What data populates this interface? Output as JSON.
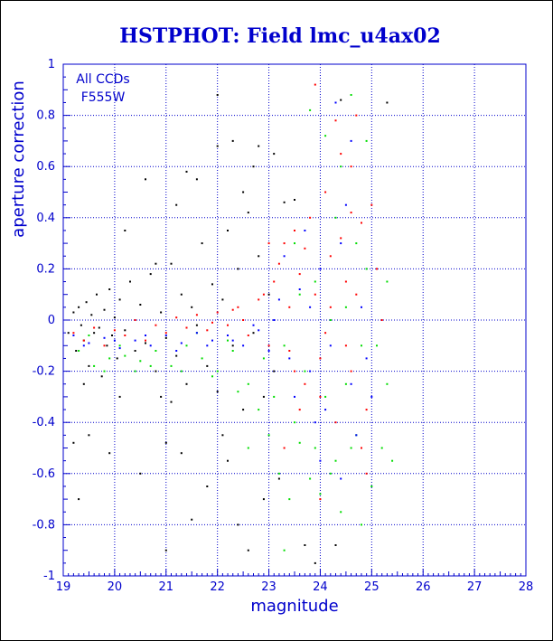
{
  "chart_data": {
    "type": "scatter",
    "title": "HSTPHOT: Field lmc_u4ax02",
    "xlabel": "magnitude",
    "ylabel": "aperture correction",
    "xlim": [
      19,
      28
    ],
    "ylim": [
      -1,
      1
    ],
    "x_ticks": [
      "19",
      "20",
      "21",
      "22",
      "23",
      "24",
      "25",
      "26",
      "27",
      "28"
    ],
    "y_ticks": [
      "1",
      "0.8",
      "0.6",
      "0.4",
      "0.2",
      "0",
      "-0.2",
      "-0.4",
      "-0.6",
      "-0.8",
      "-1"
    ],
    "grid": true,
    "annotations": [
      "All CCDs",
      "F555W"
    ],
    "series_colors": [
      "#000000",
      "#ff0000",
      "#00dd00",
      "#0000ff"
    ],
    "series": [
      {
        "color_index": 0,
        "points": [
          [
            19.1,
            -0.05
          ],
          [
            19.2,
            0.03
          ],
          [
            19.25,
            -0.12
          ],
          [
            19.3,
            0.05
          ],
          [
            19.35,
            -0.02
          ],
          [
            19.4,
            -0.08
          ],
          [
            19.45,
            0.07
          ],
          [
            19.5,
            -0.18
          ],
          [
            19.55,
            0.02
          ],
          [
            19.6,
            -0.05
          ],
          [
            19.65,
            0.1
          ],
          [
            19.7,
            -0.03
          ],
          [
            19.75,
            -0.22
          ],
          [
            19.8,
            0.04
          ],
          [
            19.85,
            -0.1
          ],
          [
            19.9,
            0.12
          ],
          [
            19.95,
            -0.06
          ],
          [
            20.0,
            0.01
          ],
          [
            20.05,
            -0.15
          ],
          [
            20.1,
            0.08
          ],
          [
            20.2,
            -0.04
          ],
          [
            20.3,
            0.15
          ],
          [
            20.4,
            -0.12
          ],
          [
            20.5,
            0.06
          ],
          [
            20.6,
            -0.09
          ],
          [
            20.7,
            0.18
          ],
          [
            20.8,
            -0.2
          ],
          [
            20.9,
            0.03
          ],
          [
            21.0,
            -0.07
          ],
          [
            21.1,
            0.22
          ],
          [
            21.2,
            -0.14
          ],
          [
            21.3,
            0.1
          ],
          [
            21.4,
            -0.25
          ],
          [
            21.5,
            0.05
          ],
          [
            21.6,
            -0.02
          ],
          [
            21.7,
            0.3
          ],
          [
            21.8,
            -0.18
          ],
          [
            21.9,
            0.14
          ],
          [
            22.0,
            -0.28
          ],
          [
            22.1,
            0.08
          ],
          [
            22.2,
            0.35
          ],
          [
            22.3,
            -0.1
          ],
          [
            22.4,
            0.2
          ],
          [
            22.5,
            -0.35
          ],
          [
            22.6,
            0.42
          ],
          [
            22.7,
            -0.05
          ],
          [
            22.8,
            0.25
          ],
          [
            22.9,
            -0.3
          ],
          [
            23.0,
            0.1
          ],
          [
            23.1,
            -0.2
          ],
          [
            19.3,
            -0.7
          ],
          [
            19.5,
            -0.45
          ],
          [
            19.9,
            -0.52
          ],
          [
            20.2,
            0.35
          ],
          [
            20.5,
            -0.6
          ],
          [
            20.9,
            -0.3
          ],
          [
            21.0,
            -0.9
          ],
          [
            21.2,
            0.45
          ],
          [
            21.3,
            -0.52
          ],
          [
            21.4,
            0.58
          ],
          [
            21.6,
            0.55
          ],
          [
            21.8,
            -0.65
          ],
          [
            22.0,
            0.88
          ],
          [
            22.0,
            0.68
          ],
          [
            22.1,
            -0.45
          ],
          [
            22.3,
            0.7
          ],
          [
            22.4,
            -0.8
          ],
          [
            22.6,
            -0.9
          ],
          [
            22.7,
            0.6
          ],
          [
            22.8,
            0.68
          ],
          [
            22.9,
            -0.7
          ],
          [
            23.1,
            0.65
          ],
          [
            23.3,
            0.46
          ],
          [
            23.5,
            0.47
          ],
          [
            23.7,
            -0.88
          ],
          [
            23.9,
            -0.95
          ],
          [
            24.3,
            -0.88
          ],
          [
            19.2,
            -0.48
          ],
          [
            20.6,
            0.55
          ],
          [
            21.0,
            -0.48
          ],
          [
            22.2,
            -0.55
          ],
          [
            23.2,
            -0.62
          ],
          [
            24.4,
            0.86
          ],
          [
            25.3,
            0.85
          ],
          [
            21.1,
            -0.32
          ],
          [
            20.1,
            -0.3
          ],
          [
            19.4,
            -0.25
          ],
          [
            22.5,
            0.5
          ],
          [
            21.5,
            -0.78
          ],
          [
            20.8,
            0.22
          ]
        ]
      },
      {
        "color_index": 1,
        "points": [
          [
            19.2,
            -0.05
          ],
          [
            19.4,
            -0.08
          ],
          [
            19.6,
            -0.03
          ],
          [
            19.8,
            -0.1
          ],
          [
            20.0,
            -0.04
          ],
          [
            20.2,
            -0.06
          ],
          [
            20.4,
            0.0
          ],
          [
            20.6,
            -0.08
          ],
          [
            20.8,
            -0.02
          ],
          [
            21.0,
            -0.05
          ],
          [
            21.2,
            0.01
          ],
          [
            21.4,
            -0.03
          ],
          [
            21.6,
            0.02
          ],
          [
            21.8,
            -0.04
          ],
          [
            22.0,
            0.03
          ],
          [
            22.2,
            -0.02
          ],
          [
            22.4,
            0.05
          ],
          [
            22.6,
            -0.06
          ],
          [
            22.8,
            0.08
          ],
          [
            23.0,
            -0.1
          ],
          [
            23.1,
            0.15
          ],
          [
            23.2,
            0.22
          ],
          [
            23.3,
            0.3
          ],
          [
            23.4,
            -0.12
          ],
          [
            23.5,
            0.35
          ],
          [
            23.6,
            0.18
          ],
          [
            23.7,
            -0.25
          ],
          [
            23.8,
            0.4
          ],
          [
            23.9,
            0.1
          ],
          [
            24.0,
            -0.3
          ],
          [
            24.1,
            0.5
          ],
          [
            24.2,
            0.25
          ],
          [
            24.3,
            -0.4
          ],
          [
            24.4,
            0.65
          ],
          [
            24.5,
            0.15
          ],
          [
            24.6,
            -0.2
          ],
          [
            24.7,
            0.8
          ],
          [
            24.8,
            0.38
          ],
          [
            24.9,
            -0.35
          ],
          [
            25.0,
            0.45
          ],
          [
            23.9,
            0.92
          ],
          [
            24.3,
            0.78
          ],
          [
            24.6,
            0.6
          ],
          [
            23.3,
            -0.5
          ],
          [
            23.6,
            -0.35
          ],
          [
            24.0,
            -0.15
          ],
          [
            24.2,
            0.05
          ],
          [
            24.5,
            -0.1
          ],
          [
            24.8,
            -0.5
          ],
          [
            25.1,
            0.2
          ],
          [
            23.0,
            0.3
          ],
          [
            22.9,
            0.1
          ],
          [
            23.4,
            0.05
          ],
          [
            23.7,
            0.28
          ],
          [
            24.1,
            -0.05
          ],
          [
            24.4,
            0.32
          ],
          [
            24.7,
            0.1
          ],
          [
            22.5,
            0.0
          ],
          [
            22.3,
            0.04
          ],
          [
            21.9,
            -0.01
          ],
          [
            24.9,
            -0.6
          ],
          [
            24.0,
            -0.7
          ],
          [
            25.2,
            0.0
          ],
          [
            23.5,
            -0.2
          ],
          [
            24.6,
            0.42
          ]
        ]
      },
      {
        "color_index": 2,
        "points": [
          [
            19.3,
            -0.12
          ],
          [
            19.6,
            -0.18
          ],
          [
            19.9,
            -0.15
          ],
          [
            20.2,
            -0.14
          ],
          [
            20.5,
            -0.16
          ],
          [
            20.8,
            -0.12
          ],
          [
            21.1,
            -0.18
          ],
          [
            21.4,
            -0.1
          ],
          [
            21.7,
            -0.15
          ],
          [
            22.0,
            -0.2
          ],
          [
            22.3,
            -0.12
          ],
          [
            22.6,
            -0.25
          ],
          [
            22.9,
            -0.15
          ],
          [
            23.1,
            -0.3
          ],
          [
            23.3,
            -0.1
          ],
          [
            23.5,
            -0.4
          ],
          [
            23.7,
            -0.2
          ],
          [
            23.9,
            -0.5
          ],
          [
            24.1,
            -0.3
          ],
          [
            24.3,
            -0.55
          ],
          [
            24.5,
            0.05
          ],
          [
            24.7,
            -0.45
          ],
          [
            24.9,
            0.2
          ],
          [
            25.1,
            -0.1
          ],
          [
            25.3,
            0.15
          ],
          [
            23.2,
            -0.6
          ],
          [
            23.4,
            -0.7
          ],
          [
            23.6,
            -0.48
          ],
          [
            23.8,
            -0.62
          ],
          [
            24.0,
            -0.68
          ],
          [
            24.2,
            -0.6
          ],
          [
            24.4,
            -0.75
          ],
          [
            24.6,
            -0.5
          ],
          [
            24.8,
            -0.8
          ],
          [
            25.0,
            -0.65
          ],
          [
            23.3,
            -0.9
          ],
          [
            24.9,
            0.7
          ],
          [
            24.4,
            0.6
          ],
          [
            24.1,
            0.72
          ],
          [
            23.8,
            0.82
          ],
          [
            24.6,
            0.88
          ],
          [
            23.5,
            0.3
          ],
          [
            23.9,
            0.15
          ],
          [
            24.3,
            0.4
          ],
          [
            24.7,
            0.3
          ],
          [
            22.8,
            -0.35
          ],
          [
            22.4,
            -0.28
          ],
          [
            21.9,
            -0.22
          ],
          [
            21.3,
            -0.2
          ],
          [
            20.7,
            -0.18
          ],
          [
            20.1,
            -0.1
          ],
          [
            19.5,
            -0.06
          ],
          [
            25.3,
            -0.25
          ],
          [
            25.2,
            -0.5
          ],
          [
            24.5,
            -0.25
          ],
          [
            23.0,
            -0.45
          ],
          [
            22.2,
            -0.08
          ],
          [
            21.6,
            -0.05
          ],
          [
            20.4,
            -0.2
          ],
          [
            19.8,
            -0.2
          ],
          [
            23.6,
            0.1
          ],
          [
            24.2,
            0.0
          ],
          [
            24.8,
            -0.1
          ],
          [
            25.4,
            -0.55
          ],
          [
            22.6,
            -0.5
          ]
        ]
      },
      {
        "color_index": 3,
        "points": [
          [
            19.2,
            -0.06
          ],
          [
            19.5,
            -0.09
          ],
          [
            19.8,
            -0.07
          ],
          [
            20.1,
            -0.11
          ],
          [
            20.4,
            -0.08
          ],
          [
            20.7,
            -0.1
          ],
          [
            21.0,
            -0.06
          ],
          [
            21.3,
            -0.09
          ],
          [
            21.6,
            -0.05
          ],
          [
            21.9,
            -0.08
          ],
          [
            22.2,
            -0.06
          ],
          [
            22.5,
            -0.1
          ],
          [
            22.8,
            -0.04
          ],
          [
            23.0,
            -0.12
          ],
          [
            23.2,
            0.08
          ],
          [
            23.4,
            -0.15
          ],
          [
            23.6,
            0.12
          ],
          [
            23.8,
            -0.2
          ],
          [
            24.0,
            0.2
          ],
          [
            24.2,
            -0.1
          ],
          [
            24.4,
            0.3
          ],
          [
            24.6,
            -0.25
          ],
          [
            24.8,
            0.05
          ],
          [
            25.0,
            -0.3
          ],
          [
            23.3,
            0.25
          ],
          [
            23.7,
            0.35
          ],
          [
            24.1,
            -0.35
          ],
          [
            24.5,
            0.45
          ],
          [
            24.9,
            -0.15
          ],
          [
            23.9,
            -0.4
          ],
          [
            24.3,
            0.85
          ],
          [
            24.6,
            0.7
          ],
          [
            23.5,
            -0.3
          ],
          [
            24.7,
            -0.45
          ],
          [
            23.1,
            0.0
          ],
          [
            22.7,
            -0.02
          ],
          [
            22.3,
            -0.08
          ],
          [
            21.8,
            -0.1
          ],
          [
            21.2,
            -0.12
          ],
          [
            20.6,
            -0.06
          ],
          [
            20.0,
            -0.08
          ],
          [
            19.4,
            -0.1
          ],
          [
            24.0,
            -0.55
          ],
          [
            24.4,
            -0.62
          ],
          [
            23.8,
            0.05
          ]
        ]
      }
    ]
  }
}
